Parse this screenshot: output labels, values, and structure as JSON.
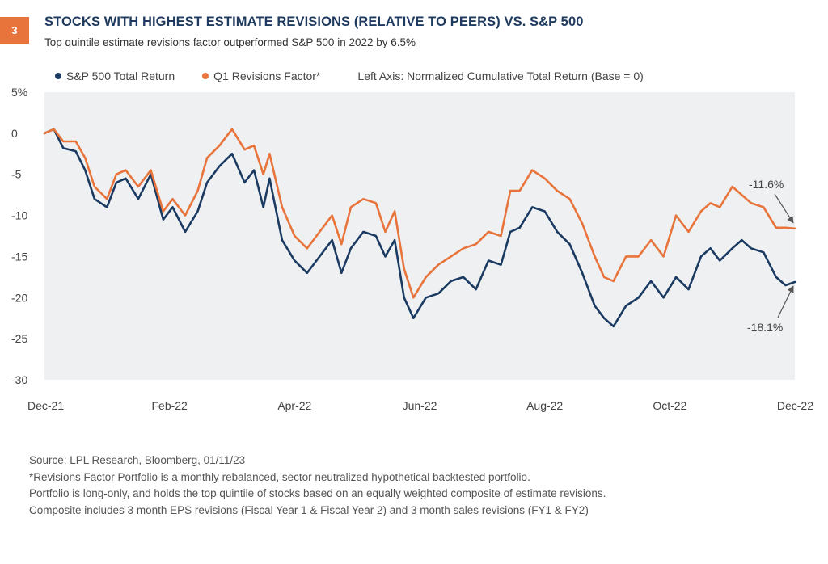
{
  "figure": {
    "number": "3",
    "title": "STOCKS WITH HIGHEST ESTIMATE REVISIONS (RELATIVE TO PEERS) VS. S&P 500",
    "subtitle": "Top quintile estimate revisions factor outperformed S&P 500 in 2022 by 6.5%"
  },
  "legend": {
    "axis_note": "Left Axis: Normalized Cumulative Total Return (Base = 0)"
  },
  "footnotes": [
    "Source: LPL Research, Bloomberg,  01/11/23",
    "*Revisions Factor Portfolio is a monthly rebalanced, sector neutralized hypothetical backtested portfolio.",
    "Portfolio is long-only, and holds the top quintile of stocks based on an equally weighted composite of estimate revisions.",
    "Composite includes 3 month EPS revisions (Fiscal Year 1 & Fiscal Year 2) and 3 month sales revisions (FY1 & FY2)"
  ],
  "colors": {
    "sp500": "#1b3a61",
    "revisions": "#e8743b",
    "plot_bg": "#eef0f2",
    "badge": "#e8743b",
    "title": "#1f3a5f"
  },
  "chart_data": {
    "type": "line",
    "ylim": [
      -30,
      5
    ],
    "xlim": [
      0,
      12
    ],
    "grid": false,
    "legend_placement": "top-left",
    "yticks": [
      {
        "value": 5,
        "label": "5%"
      },
      {
        "value": 0,
        "label": "0"
      },
      {
        "value": -5,
        "label": "-5"
      },
      {
        "value": -10,
        "label": "-10"
      },
      {
        "value": -15,
        "label": "-15"
      },
      {
        "value": -20,
        "label": "-20"
      },
      {
        "value": -25,
        "label": "-25"
      },
      {
        "value": -30,
        "label": "-30"
      }
    ],
    "xticks": [
      {
        "value": 0,
        "label": "Dec-21"
      },
      {
        "value": 2,
        "label": "Feb-22"
      },
      {
        "value": 4,
        "label": "Apr-22"
      },
      {
        "value": 6,
        "label": "Jun-22"
      },
      {
        "value": 8,
        "label": "Aug-22"
      },
      {
        "value": 10,
        "label": "Oct-22"
      },
      {
        "value": 12,
        "label": "Dec-22"
      }
    ],
    "series": [
      {
        "name": "S&P 500 Total Return",
        "key": "sp500",
        "x": [
          0,
          0.15,
          0.3,
          0.5,
          0.65,
          0.8,
          1.0,
          1.15,
          1.3,
          1.5,
          1.7,
          1.9,
          2.05,
          2.25,
          2.45,
          2.6,
          2.8,
          3.0,
          3.2,
          3.35,
          3.5,
          3.6,
          3.8,
          4.0,
          4.2,
          4.4,
          4.6,
          4.75,
          4.9,
          5.1,
          5.3,
          5.45,
          5.6,
          5.75,
          5.9,
          6.1,
          6.3,
          6.5,
          6.7,
          6.9,
          7.1,
          7.3,
          7.45,
          7.6,
          7.8,
          8.0,
          8.2,
          8.4,
          8.6,
          8.8,
          8.95,
          9.1,
          9.3,
          9.5,
          9.7,
          9.9,
          10.1,
          10.3,
          10.5,
          10.65,
          10.8,
          11.0,
          11.15,
          11.3,
          11.5,
          11.7,
          11.85,
          12.0
        ],
        "y": [
          0,
          0.5,
          -1.8,
          -2.2,
          -4.5,
          -8,
          -9,
          -6,
          -5.5,
          -8,
          -5,
          -10.5,
          -9,
          -12,
          -9.5,
          -6,
          -4,
          -2.5,
          -6,
          -4.5,
          -9,
          -5.5,
          -13,
          -15.5,
          -17,
          -15,
          -13,
          -17,
          -14,
          -12,
          -12.5,
          -15,
          -13,
          -20,
          -22.5,
          -20,
          -19.5,
          -18,
          -17.5,
          -19,
          -15.5,
          -16,
          -12,
          -11.5,
          -9,
          -9.5,
          -12,
          -13.5,
          -17,
          -21,
          -22.5,
          -23.5,
          -21,
          -20,
          -18,
          -20,
          -17.5,
          -19,
          -15,
          -14,
          -15.5,
          -14,
          -13,
          -14,
          -14.5,
          -17.5,
          -18.5,
          -18.1
        ]
      },
      {
        "name": "Q1 Revisions Factor*",
        "key": "revisions",
        "x": [
          0,
          0.15,
          0.3,
          0.5,
          0.65,
          0.8,
          1.0,
          1.15,
          1.3,
          1.5,
          1.7,
          1.9,
          2.05,
          2.25,
          2.45,
          2.6,
          2.8,
          3.0,
          3.2,
          3.35,
          3.5,
          3.6,
          3.8,
          4.0,
          4.2,
          4.4,
          4.6,
          4.75,
          4.9,
          5.1,
          5.3,
          5.45,
          5.6,
          5.75,
          5.9,
          6.1,
          6.3,
          6.5,
          6.7,
          6.9,
          7.1,
          7.3,
          7.45,
          7.6,
          7.8,
          8.0,
          8.2,
          8.4,
          8.6,
          8.8,
          8.95,
          9.1,
          9.3,
          9.5,
          9.7,
          9.9,
          10.1,
          10.3,
          10.5,
          10.65,
          10.8,
          11.0,
          11.15,
          11.3,
          11.5,
          11.7,
          11.85,
          12.0
        ],
        "y": [
          0,
          0.5,
          -1.0,
          -1.0,
          -3.0,
          -6.5,
          -8,
          -5,
          -4.5,
          -6.5,
          -4.5,
          -9.5,
          -8,
          -10,
          -7,
          -3,
          -1.5,
          0.5,
          -2,
          -1.5,
          -5,
          -2.5,
          -9,
          -12.5,
          -14,
          -12,
          -10,
          -13.5,
          -9,
          -8,
          -8.5,
          -12,
          -9.5,
          -16.5,
          -20,
          -17.5,
          -16,
          -15,
          -14,
          -13.5,
          -12,
          -12.5,
          -7,
          -7,
          -4.5,
          -5.5,
          -7,
          -8,
          -11,
          -15,
          -17.5,
          -18,
          -15,
          -15,
          -13,
          -15,
          -10,
          -12,
          -9.5,
          -8.5,
          -9,
          -6.5,
          -7.5,
          -8.5,
          -9,
          -11.5,
          -11.5,
          -11.6
        ]
      }
    ],
    "annotations": [
      {
        "text": "-11.6%",
        "series": "revisions"
      },
      {
        "text": "-18.1%",
        "series": "sp500"
      }
    ]
  }
}
